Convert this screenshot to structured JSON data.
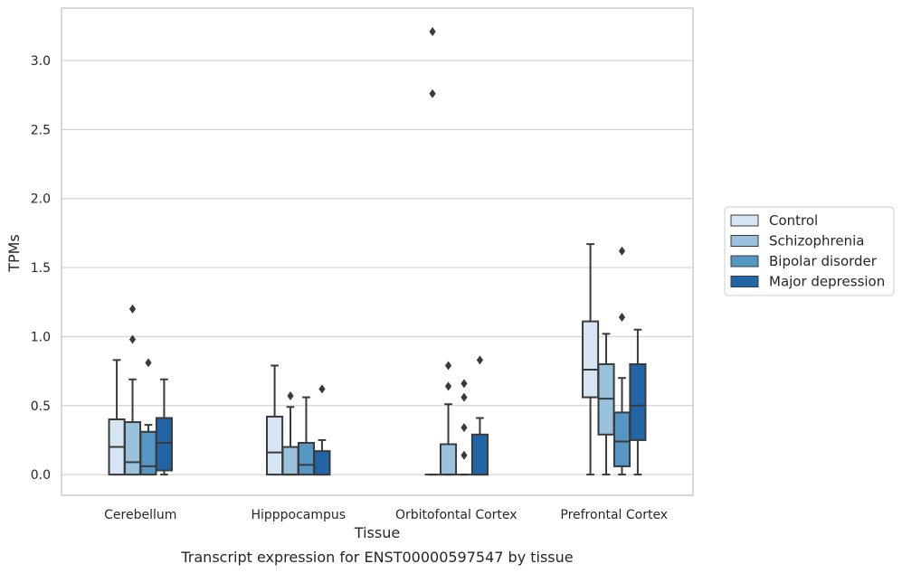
{
  "chart_data": {
    "type": "box",
    "caption": "Transcript expression for ENST00000597547 by tissue",
    "xlabel": "Tissue",
    "ylabel": "TPMs",
    "ylim": [
      -0.15,
      3.38
    ],
    "yticks": [
      0.0,
      0.5,
      1.0,
      1.5,
      2.0,
      2.5,
      3.0
    ],
    "ytick_labels": [
      "0.0",
      "0.5",
      "1.0",
      "1.5",
      "2.0",
      "2.5",
      "3.0"
    ],
    "grid": "horizontal",
    "legend_position": "right",
    "categories": [
      "Cerebellum",
      "Hipppocampus",
      "Orbitofontal Cortex",
      "Prefrontal Cortex"
    ],
    "series": [
      {
        "name": "Control",
        "color": "#d6e5f4",
        "boxes": [
          {
            "whisker_low": 0.0,
            "q1": 0.0,
            "median": 0.2,
            "q3": 0.4,
            "whisker_high": 0.83,
            "outliers": []
          },
          {
            "whisker_low": 0.0,
            "q1": 0.0,
            "median": 0.16,
            "q3": 0.42,
            "whisker_high": 0.79,
            "outliers": []
          },
          {
            "whisker_low": 0.0,
            "q1": 0.0,
            "median": 0.0,
            "q3": 0.0,
            "whisker_high": 0.0,
            "outliers": [
              3.21,
              2.76
            ]
          },
          {
            "whisker_low": 0.0,
            "q1": 0.56,
            "median": 0.76,
            "q3": 1.11,
            "whisker_high": 1.67,
            "outliers": []
          }
        ]
      },
      {
        "name": "Schizophrenia",
        "color": "#9ac2dd",
        "boxes": [
          {
            "whisker_low": 0.0,
            "q1": 0.0,
            "median": 0.09,
            "q3": 0.38,
            "whisker_high": 0.69,
            "outliers": [
              1.2,
              0.98
            ]
          },
          {
            "whisker_low": 0.0,
            "q1": 0.0,
            "median": 0.0,
            "q3": 0.2,
            "whisker_high": 0.49,
            "outliers": [
              0.57
            ]
          },
          {
            "whisker_low": 0.0,
            "q1": 0.0,
            "median": 0.0,
            "q3": 0.22,
            "whisker_high": 0.51,
            "outliers": [
              0.79,
              0.64
            ]
          },
          {
            "whisker_low": 0.0,
            "q1": 0.29,
            "median": 0.55,
            "q3": 0.8,
            "whisker_high": 1.02,
            "outliers": []
          }
        ]
      },
      {
        "name": "Bipolar disorder",
        "color": "#5596c5",
        "boxes": [
          {
            "whisker_low": 0.0,
            "q1": 0.0,
            "median": 0.06,
            "q3": 0.31,
            "whisker_high": 0.36,
            "outliers": [
              0.81
            ]
          },
          {
            "whisker_low": 0.0,
            "q1": 0.0,
            "median": 0.07,
            "q3": 0.23,
            "whisker_high": 0.56,
            "outliers": []
          },
          {
            "whisker_low": 0.0,
            "q1": 0.0,
            "median": 0.0,
            "q3": 0.0,
            "whisker_high": 0.0,
            "outliers": [
              0.66,
              0.56,
              0.34,
              0.14
            ]
          },
          {
            "whisker_low": 0.0,
            "q1": 0.06,
            "median": 0.24,
            "q3": 0.45,
            "whisker_high": 0.7,
            "outliers": [
              1.62,
              1.14
            ]
          }
        ]
      },
      {
        "name": "Major depression",
        "color": "#2265a6",
        "boxes": [
          {
            "whisker_low": 0.0,
            "q1": 0.03,
            "median": 0.23,
            "q3": 0.41,
            "whisker_high": 0.69,
            "outliers": []
          },
          {
            "whisker_low": 0.0,
            "q1": 0.0,
            "median": 0.0,
            "q3": 0.17,
            "whisker_high": 0.25,
            "outliers": [
              0.62
            ]
          },
          {
            "whisker_low": 0.0,
            "q1": 0.0,
            "median": 0.0,
            "q3": 0.29,
            "whisker_high": 0.41,
            "outliers": [
              0.83
            ]
          },
          {
            "whisker_low": 0.0,
            "q1": 0.25,
            "median": 0.5,
            "q3": 0.8,
            "whisker_high": 1.05,
            "outliers": []
          }
        ]
      }
    ]
  }
}
